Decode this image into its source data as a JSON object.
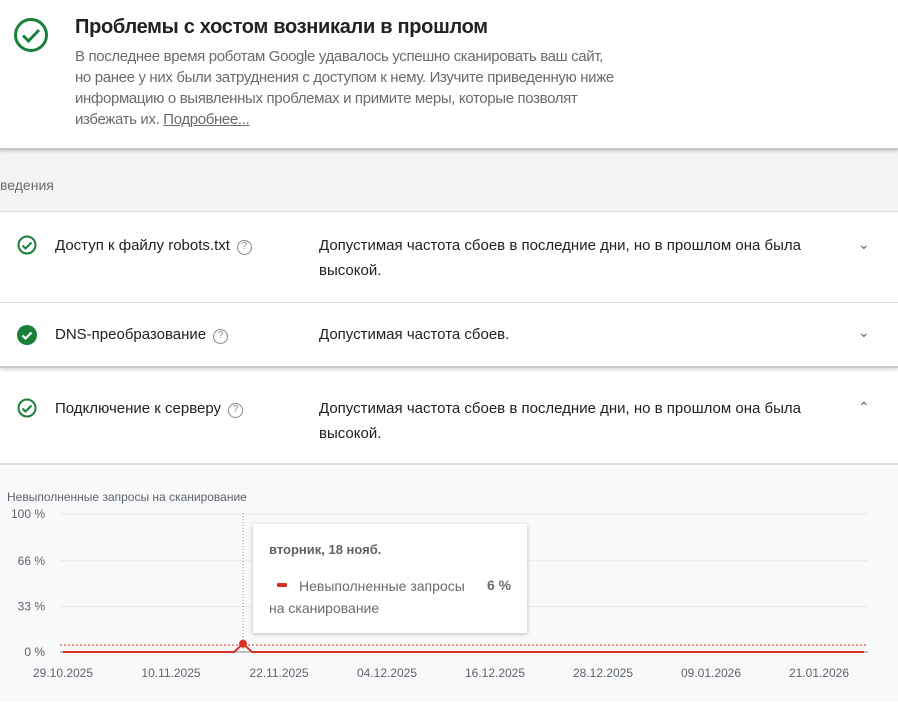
{
  "header": {
    "title": "Проблемы с хостом возникали в прошлом",
    "description_lines": [
      "В последнее время роботам Google удавалось успешно сканировать ваш сайт,",
      "но ранее у них были затруднения с доступом к нему. Изучите приведенную ниже",
      "информацию о выявленных проблемах и примите меры, которые позволят",
      "избежать их."
    ],
    "more_link": "Подробнее..."
  },
  "section_label": "ведения",
  "rows": [
    {
      "name": "Доступ к файлу robots.txt",
      "status": "Допустимая частота сбоев в последние дни, но в прошлом она была высокой.",
      "icon": "check-circle-outline",
      "expanded": false
    },
    {
      "name": "DNS-преобразование",
      "status": "Допустимая частота сбоев.",
      "icon": "check-circle-filled",
      "expanded": false
    },
    {
      "name": "Подключение к серверу",
      "status": "Допустимая частота сбоев в последние дни, но в прошлом она была высокой.",
      "icon": "check-circle-outline",
      "expanded": true
    }
  ],
  "help_glyph": "?",
  "colors": {
    "success": "#188038",
    "series": "#d93025"
  },
  "chart_data": {
    "type": "line",
    "title": "Невыполненные запросы на сканирование",
    "y_ticks": [
      "100 %",
      "66 %",
      "33 %",
      "0 %"
    ],
    "ylim": [
      0,
      100
    ],
    "x_ticks": [
      "29.10.2025",
      "10.11.2025",
      "22.11.2025",
      "04.12.2025",
      "16.12.2025",
      "28.12.2025",
      "09.01.2026",
      "21.01.2026"
    ],
    "x_range": [
      "29.10.2025",
      "26.01.2026"
    ],
    "series": [
      {
        "name": "Невыполненные запросы на сканирование",
        "default_value": 0,
        "points": [
          {
            "x": "18.11.2025",
            "y": 6
          }
        ]
      }
    ],
    "threshold": 5,
    "grid": true,
    "tooltip": {
      "date": "вторник, 18 нояб.",
      "series": "Невыполненные запросы на сканирование",
      "value": "6 %"
    }
  }
}
